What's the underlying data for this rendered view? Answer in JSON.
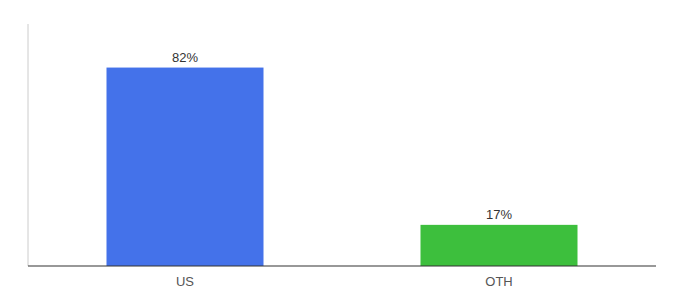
{
  "chart_data": {
    "type": "bar",
    "categories": [
      "US",
      "OTH"
    ],
    "values": [
      82,
      17
    ],
    "value_labels": [
      "82%",
      "17%"
    ],
    "colors": [
      "#4472EA",
      "#3DBF3D"
    ],
    "ylim": [
      0,
      100
    ],
    "data_labels": true,
    "tick_labels": "x",
    "grid": false
  }
}
